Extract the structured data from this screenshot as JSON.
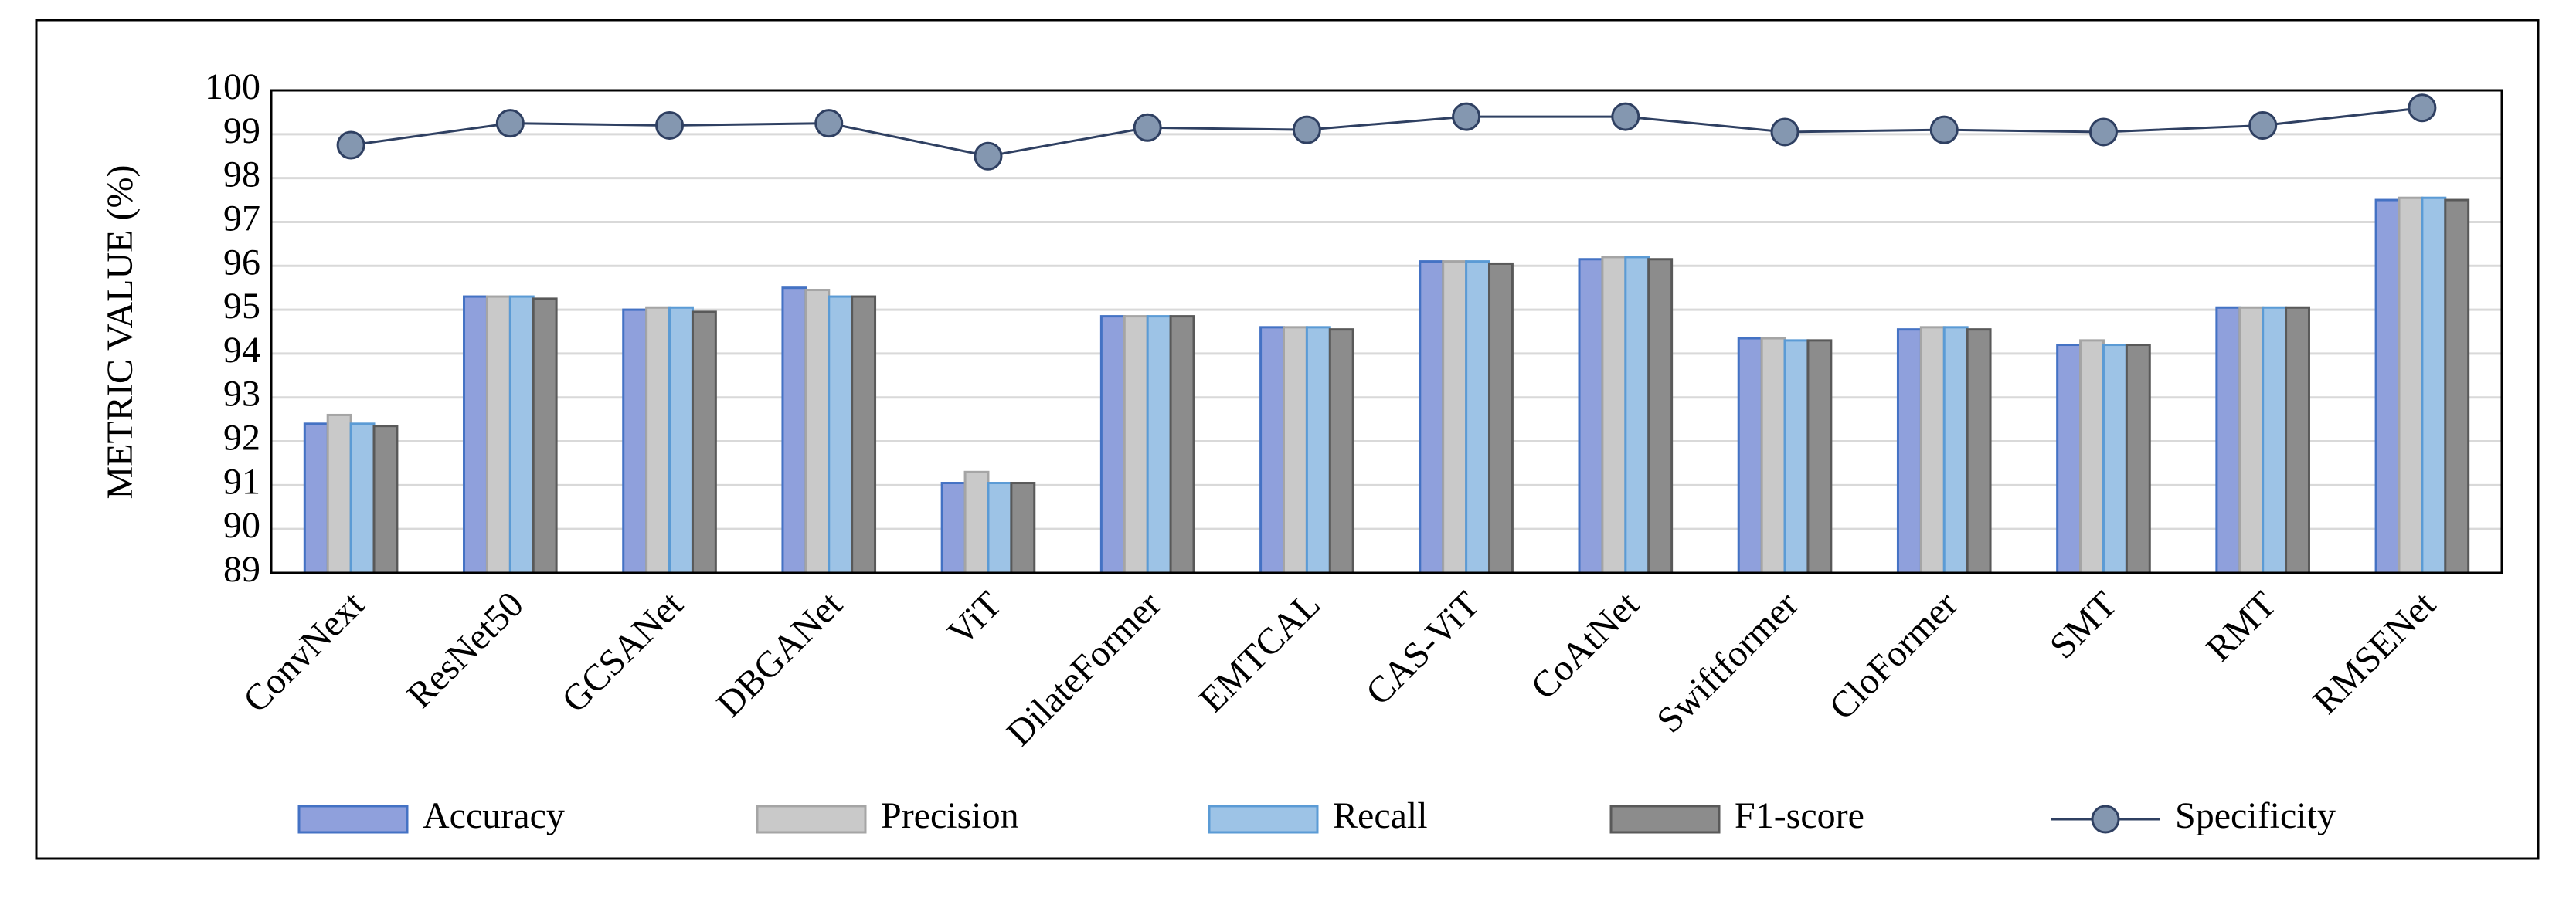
{
  "chart_data": {
    "type": "bar",
    "y_label": "METRIC VALUE (%)",
    "categories": [
      "ConvNext",
      "ResNet50",
      "GCSANet",
      "DBGANet",
      "ViT",
      "DilateFormer",
      "EMTCAL",
      "CAS-ViT",
      "CoAtNet",
      "Swiftformer",
      "CloFormer",
      "SMT",
      "RMT",
      "RMSENet"
    ],
    "series": [
      {
        "name": "Accuracy",
        "color": "#8fa0dc",
        "stroke": "#4472c4",
        "values": [
          92.4,
          95.3,
          95.0,
          95.5,
          91.05,
          94.85,
          94.6,
          96.1,
          96.15,
          94.35,
          94.55,
          94.2,
          95.05,
          97.5
        ]
      },
      {
        "name": "Precision",
        "color": "#c9c9c9",
        "stroke": "#a5a5a5",
        "values": [
          92.6,
          95.3,
          95.05,
          95.45,
          91.3,
          94.85,
          94.6,
          96.1,
          96.2,
          94.35,
          94.6,
          94.3,
          95.05,
          97.55
        ]
      },
      {
        "name": "Recall",
        "color": "#9dc3e6",
        "stroke": "#5b9bd5",
        "values": [
          92.4,
          95.3,
          95.05,
          95.3,
          91.05,
          94.85,
          94.6,
          96.1,
          96.2,
          94.3,
          94.6,
          94.2,
          95.05,
          97.55
        ]
      },
      {
        "name": "F1-score",
        "color": "#8c8c8c",
        "stroke": "#595959",
        "values": [
          92.35,
          95.25,
          94.95,
          95.3,
          91.05,
          94.85,
          94.55,
          96.05,
          96.15,
          94.3,
          94.55,
          94.2,
          95.05,
          97.5
        ]
      },
      {
        "name": "Specificity",
        "type": "line",
        "color": "#2f4062",
        "marker_color": "#8497b0",
        "values": [
          98.75,
          99.25,
          99.2,
          99.25,
          98.5,
          99.15,
          99.1,
          99.4,
          99.4,
          99.05,
          99.1,
          99.05,
          99.2,
          99.6
        ]
      }
    ],
    "ylim": [
      89,
      100
    ],
    "yticks": [
      89,
      90,
      91,
      92,
      93,
      94,
      95,
      96,
      97,
      98,
      99,
      100
    ],
    "grid": true
  }
}
